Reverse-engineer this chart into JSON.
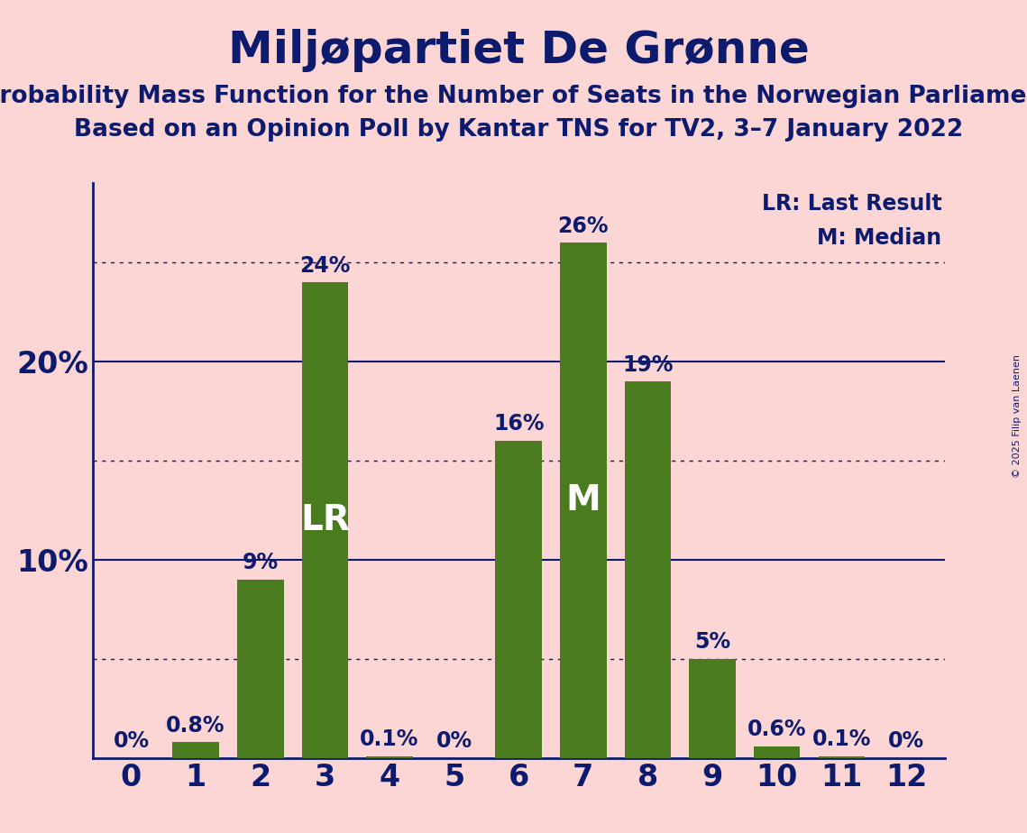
{
  "title": "Miljøpartiet De Grønne",
  "subtitle1": "Probability Mass Function for the Number of Seats in the Norwegian Parliament",
  "subtitle2": "Based on an Opinion Poll by Kantar TNS for TV2, 3–7 January 2022",
  "copyright": "© 2025 Filip van Laenen",
  "categories": [
    0,
    1,
    2,
    3,
    4,
    5,
    6,
    7,
    8,
    9,
    10,
    11,
    12
  ],
  "values": [
    0.0,
    0.8,
    9.0,
    24.0,
    0.1,
    0.0,
    16.0,
    26.0,
    19.0,
    5.0,
    0.6,
    0.1,
    0.0
  ],
  "value_labels": [
    "0%",
    "0.8%",
    "9%",
    "24%",
    "0.1%",
    "0%",
    "16%",
    "26%",
    "19%",
    "5%",
    "0.6%",
    "0.1%",
    "0%"
  ],
  "bar_color": "#4a7c1f",
  "background_color": "#fcd5d5",
  "title_color": "#0d1b6e",
  "label_color": "#0d1b6e",
  "axis_color": "#0d1b6e",
  "LR_bar": 3,
  "M_bar": 7,
  "legend_text1": "LR: Last Result",
  "legend_text2": "M: Median",
  "yticks": [
    10,
    20
  ],
  "dotted_gridlines": [
    5,
    15,
    25
  ],
  "solid_gridlines": [
    10,
    20
  ],
  "ymax": 29
}
